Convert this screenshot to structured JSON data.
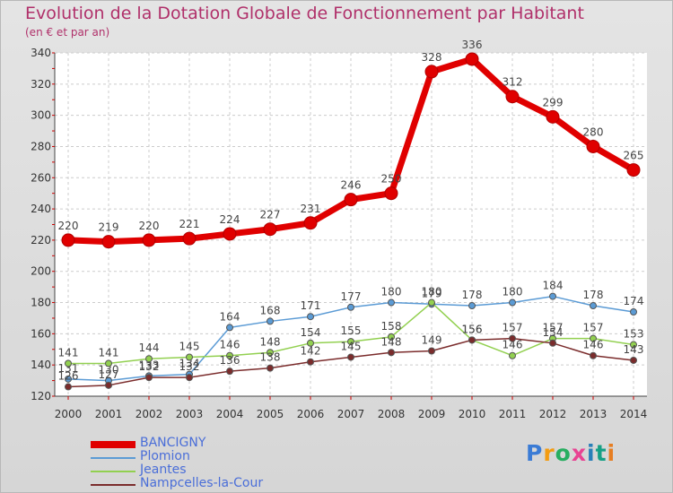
{
  "chart_data": {
    "type": "line",
    "title": "Evolution de la Dotation Globale de Fonctionnement par Habitant",
    "subtitle": "(en € et par an)",
    "categories": [
      "2000",
      "2001",
      "2002",
      "2003",
      "2004",
      "2005",
      "2006",
      "2007",
      "2008",
      "2009",
      "2010",
      "2011",
      "2012",
      "2013",
      "2014"
    ],
    "ylim": [
      120,
      340
    ],
    "yticks": [
      120,
      140,
      160,
      180,
      200,
      220,
      240,
      260,
      280,
      300,
      320,
      340
    ],
    "grid": true,
    "series": [
      {
        "name": "BANCIGNY",
        "color": "#e00000",
        "emphasis": true,
        "values": [
          220,
          219,
          220,
          221,
          224,
          227,
          231,
          246,
          250,
          328,
          336,
          312,
          299,
          280,
          265
        ],
        "labels": [
          "220",
          "219",
          "220",
          "221",
          "224",
          "227",
          "231",
          "246",
          "250",
          "328",
          "336",
          "312",
          "299",
          "280",
          "265"
        ]
      },
      {
        "name": "Plomion",
        "color": "#5b9bd5",
        "values": [
          131,
          130,
          133,
          134,
          164,
          168,
          171,
          177,
          180,
          179,
          178,
          180,
          184,
          178,
          174
        ],
        "labels": [
          "131",
          "130",
          "133",
          "134",
          "164",
          "168",
          "171",
          "177",
          "180",
          "179",
          "178",
          "180",
          "184",
          "178",
          "174"
        ]
      },
      {
        "name": "Jeantes",
        "color": "#92d050",
        "values": [
          141,
          141,
          144,
          145,
          146,
          148,
          154,
          155,
          158,
          180,
          156,
          146,
          157,
          157,
          153
        ],
        "labels": [
          "141",
          "141",
          "144",
          "145",
          "146",
          "148",
          "154",
          "155",
          "158",
          "180",
          "156",
          "146",
          "157",
          "157",
          "153"
        ]
      },
      {
        "name": "Nampcelles-la-Cour",
        "color": "#7b2c2c",
        "values": [
          126,
          127,
          132,
          132,
          136,
          138,
          142,
          145,
          148,
          149,
          156,
          157,
          154,
          146,
          143
        ],
        "labels": [
          "126",
          "127",
          "132",
          "132",
          "136",
          "138",
          "142",
          "145",
          "148",
          "149",
          "156",
          "157",
          "154",
          "146",
          "143"
        ]
      }
    ]
  },
  "legend": [
    {
      "label": "BANCIGNY",
      "color": "#e00000"
    },
    {
      "label": "Plomion",
      "color": "#5b9bd5"
    },
    {
      "label": "Jeantes",
      "color": "#92d050"
    },
    {
      "label": "Nampcelles-la-Cour",
      "color": "#7b2c2c"
    }
  ],
  "logo": {
    "text": "Proxiti"
  }
}
